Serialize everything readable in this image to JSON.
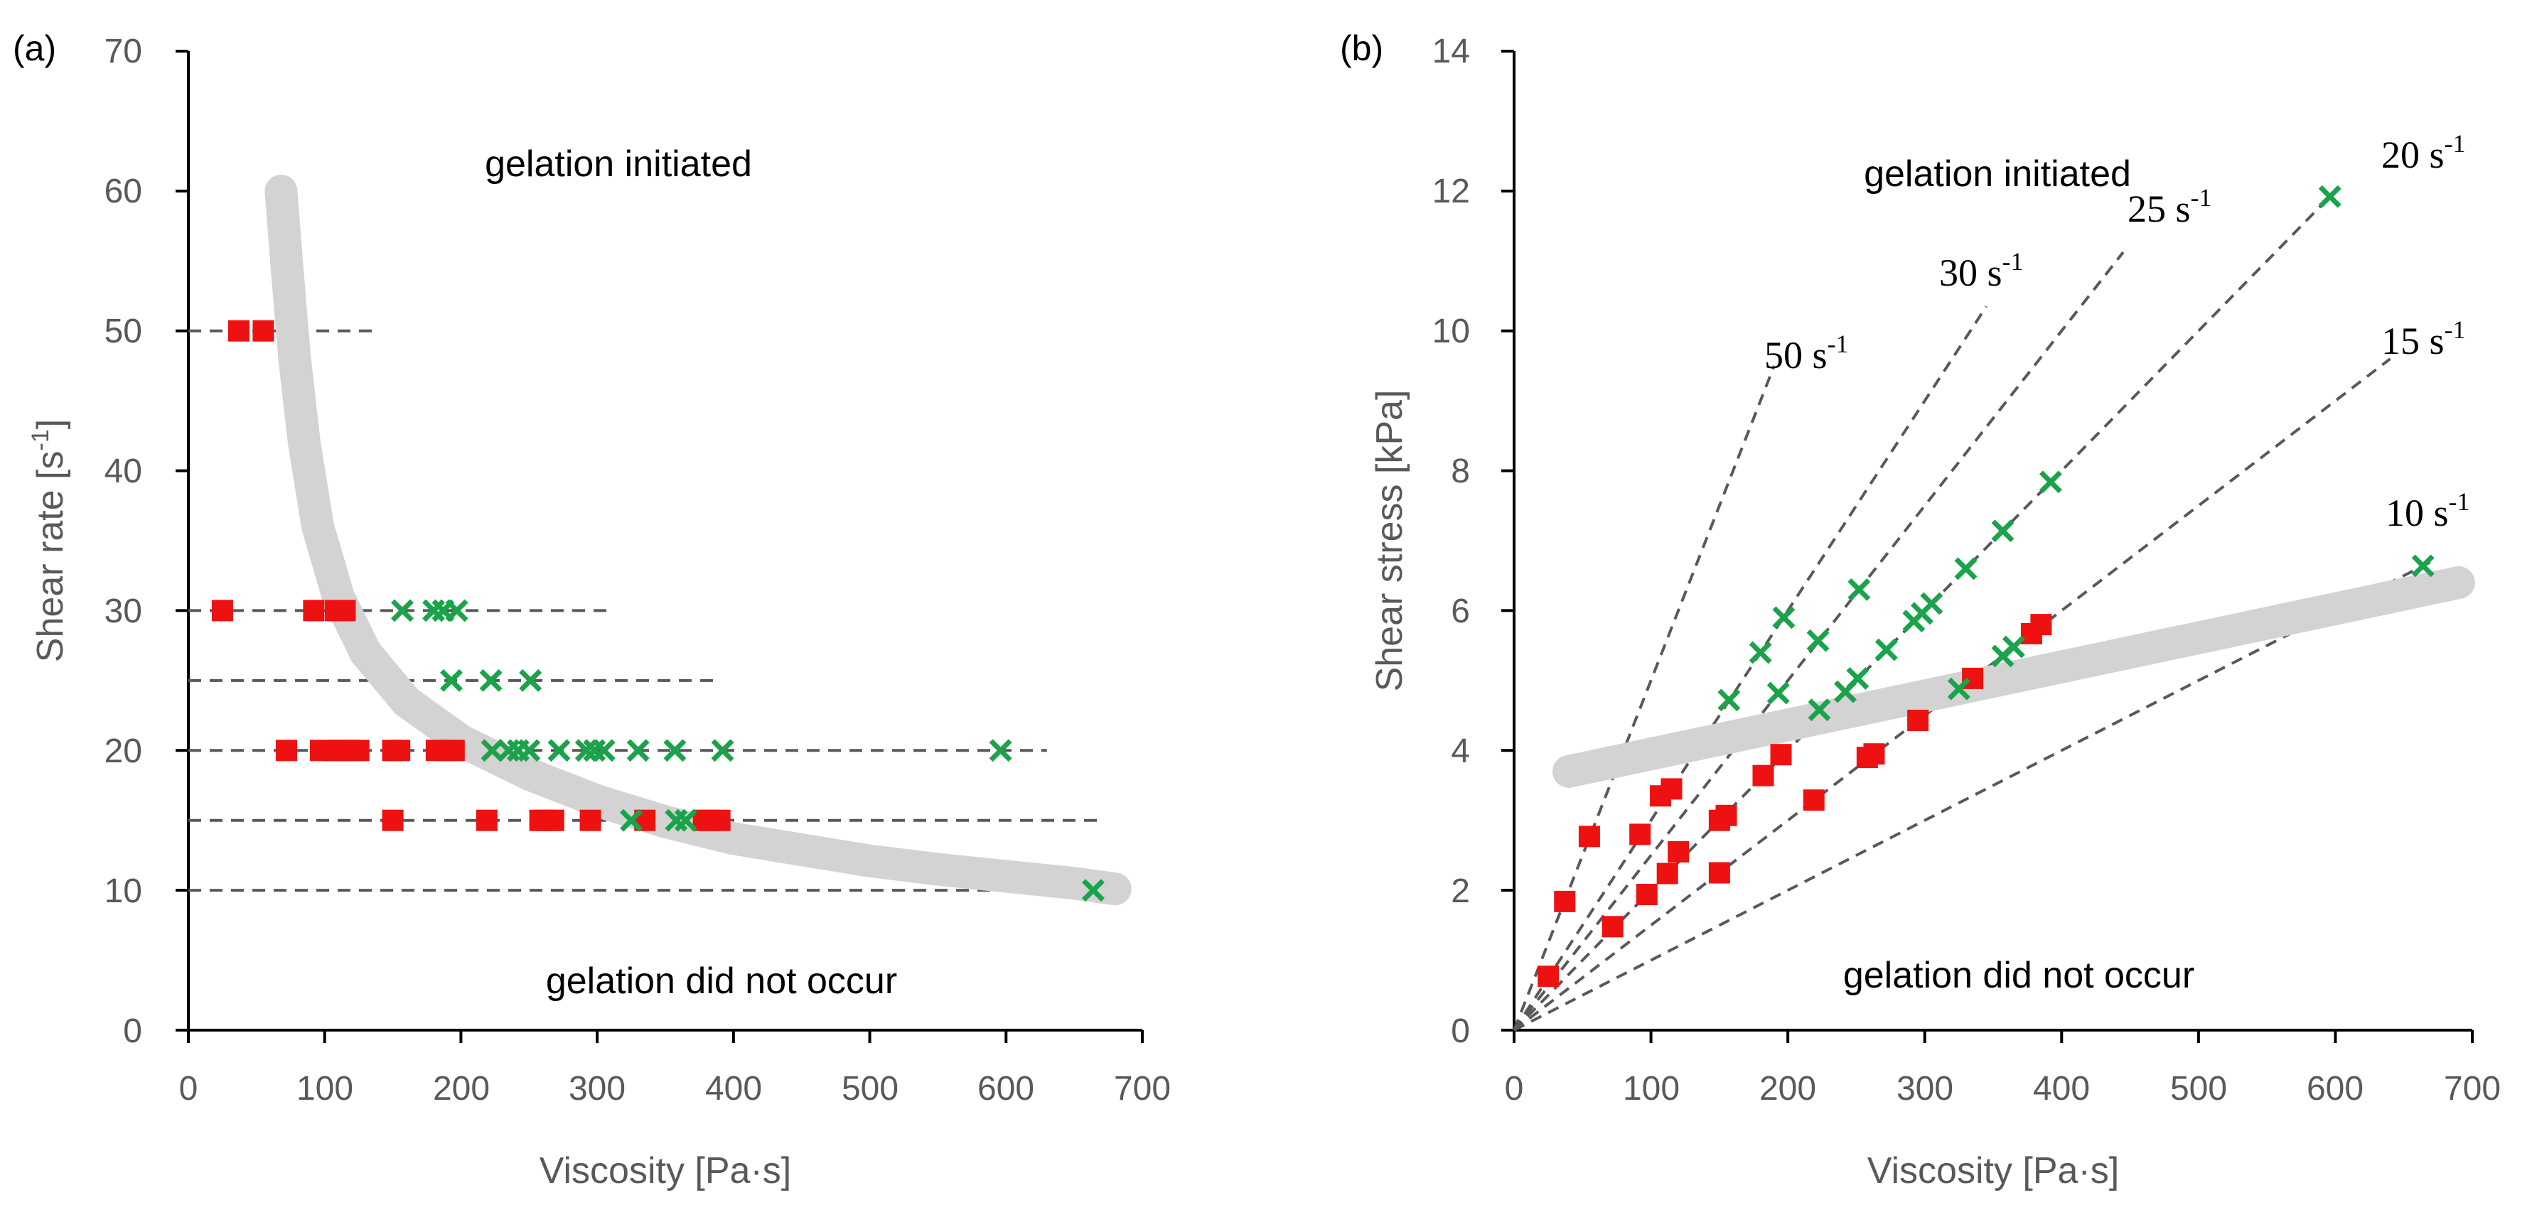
{
  "colors": {
    "axis": "#000000",
    "tick_text": "#595959",
    "dashed": "#595959",
    "boundary": "#d3d3d3",
    "red_marker": "#ee1111",
    "green_marker": "#1aa34a"
  },
  "chart_data": [
    {
      "id": "a",
      "type": "scatter",
      "panel_label": "(a)",
      "xlabel": "Viscosity [Pa·s]",
      "ylabel_main": "Shear rate [s",
      "ylabel_sup": "-1",
      "ylabel_close": "]",
      "xlim": [
        0,
        700
      ],
      "ylim": [
        0,
        70
      ],
      "x_ticks": [
        "0",
        "100",
        "200",
        "300",
        "400",
        "500",
        "600",
        "700"
      ],
      "y_ticks": [
        "0",
        "10",
        "20",
        "30",
        "40",
        "50",
        "60",
        "70"
      ],
      "region_labels": {
        "upper": "gelation initiated",
        "lower": "gelation did not occur"
      },
      "reference_lines": [
        {
          "rate": 50,
          "x_start": 0,
          "x_end": 135
        },
        {
          "rate": 30,
          "x_start": 0,
          "x_end": 310
        },
        {
          "rate": 25,
          "x_start": 0,
          "x_end": 390
        },
        {
          "rate": 20,
          "x_start": 0,
          "x_end": 630
        },
        {
          "rate": 15,
          "x_start": 0,
          "x_end": 670
        },
        {
          "rate": 10,
          "x_start": 0,
          "x_end": 690
        }
      ],
      "series": [
        {
          "name": "gelation did not occur",
          "marker": "square",
          "points": [
            [
              37,
              50
            ],
            [
              55,
              50
            ],
            [
              25,
              30
            ],
            [
              92,
              30
            ],
            [
              108,
              30
            ],
            [
              115,
              30
            ],
            [
              72,
              20
            ],
            [
              97,
              20
            ],
            [
              107,
              20
            ],
            [
              112,
              20
            ],
            [
              120,
              20
            ],
            [
              125,
              20
            ],
            [
              150,
              20
            ],
            [
              155,
              20
            ],
            [
              182,
              20
            ],
            [
              190,
              20
            ],
            [
              195,
              20
            ],
            [
              150,
              15
            ],
            [
              219,
              15
            ],
            [
              258,
              15
            ],
            [
              263,
              15
            ],
            [
              268,
              15
            ],
            [
              295,
              15
            ],
            [
              335,
              15
            ],
            [
              378,
              15
            ],
            [
              383,
              15
            ],
            [
              390,
              15
            ]
          ]
        },
        {
          "name": "gelation initiated",
          "marker": "cross",
          "points": [
            [
              157,
              30
            ],
            [
              180,
              30
            ],
            [
              187,
              30
            ],
            [
              197,
              30
            ],
            [
              193,
              25
            ],
            [
              222,
              25
            ],
            [
              251,
              25
            ],
            [
              223,
              20
            ],
            [
              235,
              20
            ],
            [
              242,
              20
            ],
            [
              250,
              20
            ],
            [
              272,
              20
            ],
            [
              292,
              20
            ],
            [
              298,
              20
            ],
            [
              305,
              20
            ],
            [
              330,
              20
            ],
            [
              357,
              20
            ],
            [
              392,
              20
            ],
            [
              596,
              20
            ],
            [
              325,
              15
            ],
            [
              358,
              15
            ],
            [
              365,
              15
            ],
            [
              664,
              10
            ]
          ]
        }
      ],
      "boundary_curve": [
        [
          68,
          60
        ],
        [
          72,
          55
        ],
        [
          78,
          48
        ],
        [
          85,
          42
        ],
        [
          95,
          36
        ],
        [
          110,
          31
        ],
        [
          130,
          27
        ],
        [
          160,
          23.5
        ],
        [
          200,
          20.7
        ],
        [
          250,
          18.3
        ],
        [
          300,
          16.4
        ],
        [
          350,
          14.9
        ],
        [
          400,
          13.7
        ],
        [
          450,
          12.9
        ],
        [
          500,
          12.1
        ],
        [
          550,
          11.5
        ],
        [
          600,
          11
        ],
        [
          650,
          10.5
        ],
        [
          680,
          10.1
        ]
      ]
    },
    {
      "id": "b",
      "type": "scatter",
      "panel_label": "(b)",
      "xlabel": "Viscosity [Pa·s]",
      "ylabel": "Shear stress [kPa]",
      "xlim": [
        0,
        700
      ],
      "ylim": [
        0,
        14
      ],
      "x_ticks": [
        "0",
        "100",
        "200",
        "300",
        "400",
        "500",
        "600",
        "700"
      ],
      "y_ticks": [
        "0",
        "2",
        "4",
        "6",
        "8",
        "10",
        "12",
        "14"
      ],
      "region_labels": {
        "upper": "gelation initiated",
        "lower": "gelation did not occur"
      },
      "rate_lines": [
        {
          "label_main": "50 s",
          "label_sup": "-1",
          "rate": 50,
          "x_end": 190
        },
        {
          "label_main": "30 s",
          "label_sup": "-1",
          "rate": 30,
          "x_end": 345
        },
        {
          "label_main": "25 s",
          "label_sup": "-1",
          "rate": 25,
          "x_end": 445
        },
        {
          "label_main": "20 s",
          "label_sup": "-1",
          "rate": 20,
          "x_end": 600
        },
        {
          "label_main": "15 s",
          "label_sup": "-1",
          "rate": 15,
          "x_end": 640
        },
        {
          "label_main": "10 s",
          "label_sup": "-1",
          "rate": 10,
          "x_end": 670
        }
      ],
      "series": [
        {
          "name": "gelation did not occur",
          "marker": "square",
          "points": [
            [
              25,
              0.77
            ],
            [
              37,
              1.84
            ],
            [
              55,
              2.77
            ],
            [
              72,
              1.48
            ],
            [
              92,
              2.8
            ],
            [
              97,
              1.94
            ],
            [
              107,
              3.35
            ],
            [
              112,
              2.24
            ],
            [
              115,
              3.45
            ],
            [
              120,
              2.55
            ],
            [
              150,
              2.25
            ],
            [
              150,
              3.0
            ],
            [
              155,
              3.07
            ],
            [
              182,
              3.64
            ],
            [
              195,
              3.94
            ],
            [
              219,
              3.29
            ],
            [
              258,
              3.9
            ],
            [
              263,
              3.95
            ],
            [
              295,
              4.43
            ],
            [
              335,
              5.03
            ],
            [
              378,
              5.67
            ],
            [
              385,
              5.8
            ]
          ]
        },
        {
          "name": "gelation initiated",
          "marker": "cross",
          "points": [
            [
              157,
              4.72
            ],
            [
              180,
              5.4
            ],
            [
              193,
              4.82
            ],
            [
              197,
              5.9
            ],
            [
              222,
              5.57
            ],
            [
              223,
              4.58
            ],
            [
              242,
              4.84
            ],
            [
              251,
              5.03
            ],
            [
              252,
              6.3
            ],
            [
              272,
              5.44
            ],
            [
              292,
              5.85
            ],
            [
              298,
              5.96
            ],
            [
              305,
              6.1
            ],
            [
              325,
              4.88
            ],
            [
              330,
              6.6
            ],
            [
              357,
              5.35
            ],
            [
              357,
              7.14
            ],
            [
              365,
              5.48
            ],
            [
              392,
              7.84
            ],
            [
              596,
              11.92
            ],
            [
              664,
              6.64
            ]
          ]
        }
      ],
      "boundary_line": [
        [
          40,
          3.7
        ],
        [
          690,
          6.4
        ]
      ]
    }
  ]
}
